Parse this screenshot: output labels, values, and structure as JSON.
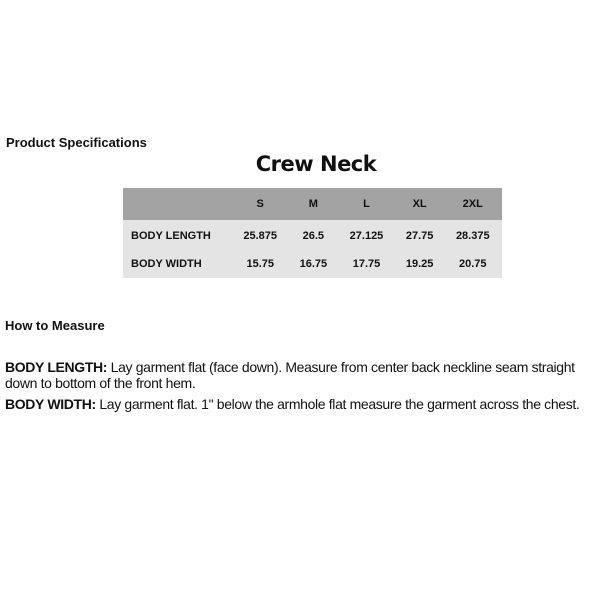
{
  "spec_title": "Product Specifications",
  "table": {
    "title": "Crew Neck",
    "header": [
      "",
      "S",
      "M",
      "L",
      "XL",
      "2XL"
    ],
    "rows": [
      {
        "label": "BODY LENGTH",
        "values": [
          "25.875",
          "26.5",
          "27.125",
          "27.75",
          "28.375"
        ]
      },
      {
        "label": "BODY WIDTH",
        "values": [
          "15.75",
          "16.75",
          "17.75",
          "19.25",
          "20.75"
        ]
      }
    ],
    "colors": {
      "header_bg": "#a3a3a3",
      "body_bg": "#e4e4e4"
    }
  },
  "measure": {
    "title": "How to Measure",
    "items": [
      {
        "term": "BODY LENGTH:",
        "text": " Lay garment flat (face down). Measure from center back neckline seam straight down to bottom of the front hem."
      },
      {
        "term": "BODY WIDTH:",
        "text": " Lay garment flat. 1\" below the armhole flat measure the garment across the chest."
      }
    ]
  }
}
